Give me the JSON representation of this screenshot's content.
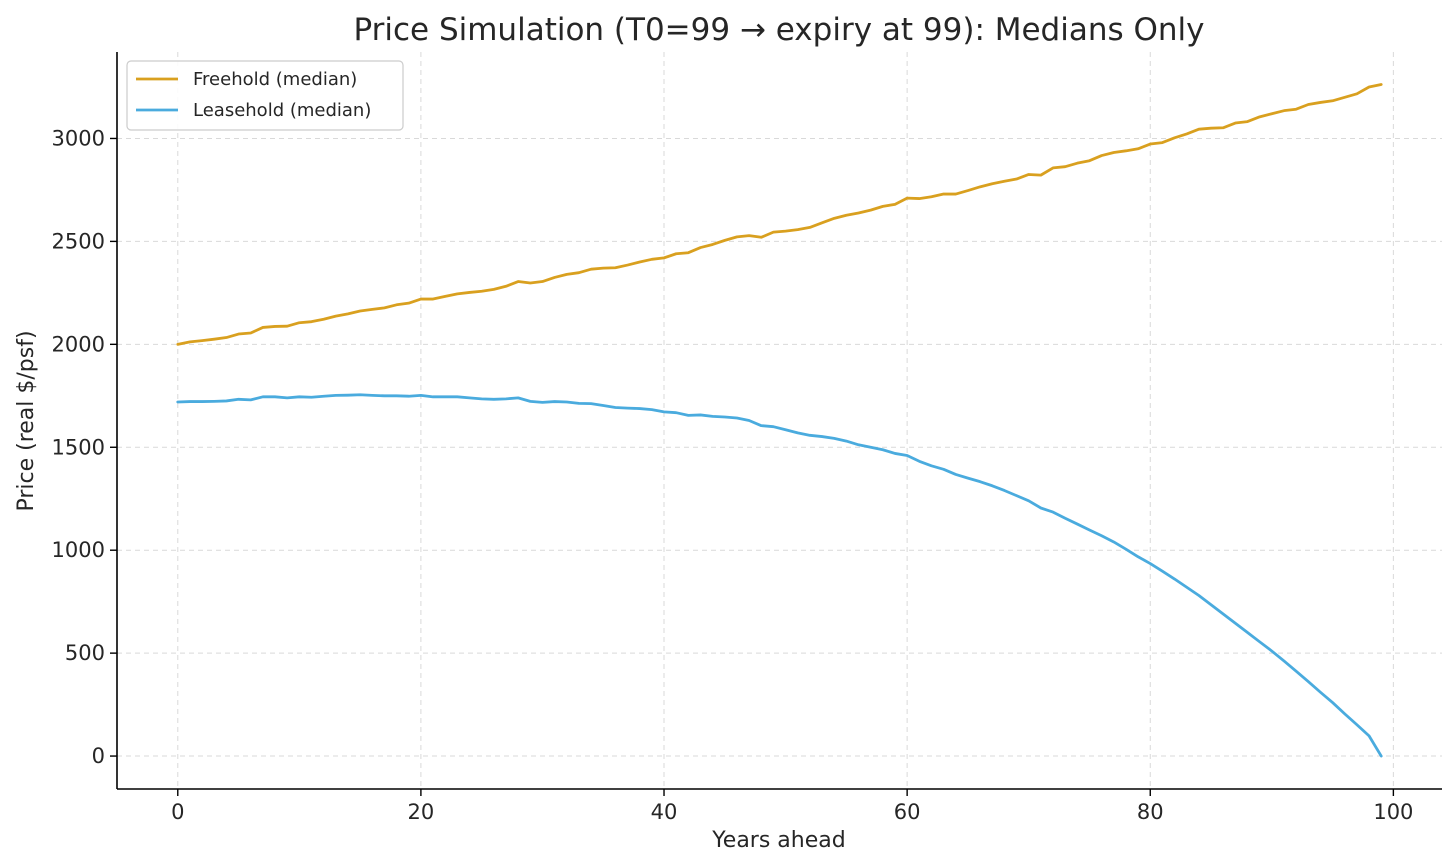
{
  "chart_data": {
    "type": "line",
    "title": "Price Simulation (T0=99 → expiry at 99): Medians Only",
    "xlabel": "Years ahead",
    "ylabel": "Price (real $/psf)",
    "xlim": [
      -5,
      104
    ],
    "ylim": [
      -160,
      3420
    ],
    "xticks": [
      0,
      20,
      40,
      60,
      80,
      100
    ],
    "yticks": [
      0,
      500,
      1000,
      1500,
      2000,
      2500,
      3000
    ],
    "grid": true,
    "legend_position": "top-left",
    "series": [
      {
        "name": "Freehold (median)",
        "color": "#D9A01F",
        "x": [
          0,
          1,
          2,
          3,
          4,
          5,
          6,
          7,
          8,
          9,
          10,
          11,
          12,
          13,
          14,
          15,
          16,
          17,
          18,
          19,
          20,
          21,
          22,
          23,
          24,
          25,
          26,
          27,
          28,
          29,
          30,
          31,
          32,
          33,
          34,
          35,
          36,
          37,
          38,
          39,
          40,
          41,
          42,
          43,
          44,
          45,
          46,
          47,
          48,
          49,
          50,
          51,
          52,
          53,
          54,
          55,
          56,
          57,
          58,
          59,
          60,
          61,
          62,
          63,
          64,
          65,
          66,
          67,
          68,
          69,
          70,
          71,
          72,
          73,
          74,
          75,
          76,
          77,
          78,
          79,
          80,
          81,
          82,
          83,
          84,
          85,
          86,
          87,
          88,
          89,
          90,
          91,
          92,
          93,
          94,
          95,
          96,
          97,
          98,
          99
        ],
        "values": [
          2000,
          2012,
          2018,
          2025,
          2033,
          2050,
          2055,
          2082,
          2087,
          2088,
          2105,
          2110,
          2122,
          2137,
          2148,
          2162,
          2170,
          2177,
          2192,
          2200,
          2220,
          2220,
          2233,
          2245,
          2252,
          2258,
          2267,
          2282,
          2305,
          2298,
          2305,
          2325,
          2340,
          2348,
          2365,
          2370,
          2372,
          2385,
          2400,
          2413,
          2420,
          2440,
          2445,
          2470,
          2485,
          2505,
          2522,
          2528,
          2520,
          2545,
          2550,
          2557,
          2568,
          2590,
          2612,
          2627,
          2638,
          2652,
          2670,
          2680,
          2710,
          2708,
          2717,
          2730,
          2730,
          2747,
          2765,
          2780,
          2792,
          2803,
          2825,
          2822,
          2857,
          2863,
          2880,
          2892,
          2917,
          2932,
          2940,
          2950,
          2973,
          2980,
          3003,
          3022,
          3045,
          3050,
          3052,
          3075,
          3082,
          3105,
          3120,
          3135,
          3142,
          3165,
          3175,
          3183,
          3200,
          3217,
          3250,
          3262
        ]
      },
      {
        "name": "Leasehold (median)",
        "color": "#4AABDE",
        "x": [
          0,
          1,
          2,
          3,
          4,
          5,
          6,
          7,
          8,
          9,
          10,
          11,
          12,
          13,
          14,
          15,
          16,
          17,
          18,
          19,
          20,
          21,
          22,
          23,
          24,
          25,
          26,
          27,
          28,
          29,
          30,
          31,
          32,
          33,
          34,
          35,
          36,
          37,
          38,
          39,
          40,
          41,
          42,
          43,
          44,
          45,
          46,
          47,
          48,
          49,
          50,
          51,
          52,
          53,
          54,
          55,
          56,
          57,
          58,
          59,
          60,
          61,
          62,
          63,
          64,
          65,
          66,
          67,
          68,
          69,
          70,
          71,
          72,
          73,
          74,
          75,
          76,
          77,
          78,
          79,
          80,
          81,
          82,
          83,
          84,
          85,
          86,
          87,
          88,
          89,
          90,
          91,
          92,
          93,
          94,
          95,
          96,
          97,
          98,
          99
        ],
        "values": [
          1720,
          1722,
          1722,
          1723,
          1725,
          1733,
          1730,
          1745,
          1745,
          1740,
          1745,
          1743,
          1748,
          1752,
          1753,
          1755,
          1752,
          1750,
          1750,
          1748,
          1752,
          1745,
          1745,
          1745,
          1740,
          1735,
          1733,
          1735,
          1740,
          1723,
          1718,
          1722,
          1720,
          1713,
          1712,
          1703,
          1693,
          1690,
          1688,
          1683,
          1672,
          1668,
          1655,
          1657,
          1650,
          1647,
          1642,
          1630,
          1605,
          1600,
          1585,
          1570,
          1558,
          1552,
          1543,
          1530,
          1512,
          1500,
          1488,
          1470,
          1460,
          1432,
          1410,
          1393,
          1368,
          1350,
          1333,
          1313,
          1290,
          1265,
          1240,
          1205,
          1185,
          1155,
          1127,
          1098,
          1070,
          1040,
          1005,
          968,
          935,
          898,
          860,
          820,
          780,
          735,
          690,
          645,
          600,
          555,
          510,
          462,
          412,
          362,
          310,
          260,
          205,
          152,
          98,
          0
        ]
      }
    ]
  }
}
